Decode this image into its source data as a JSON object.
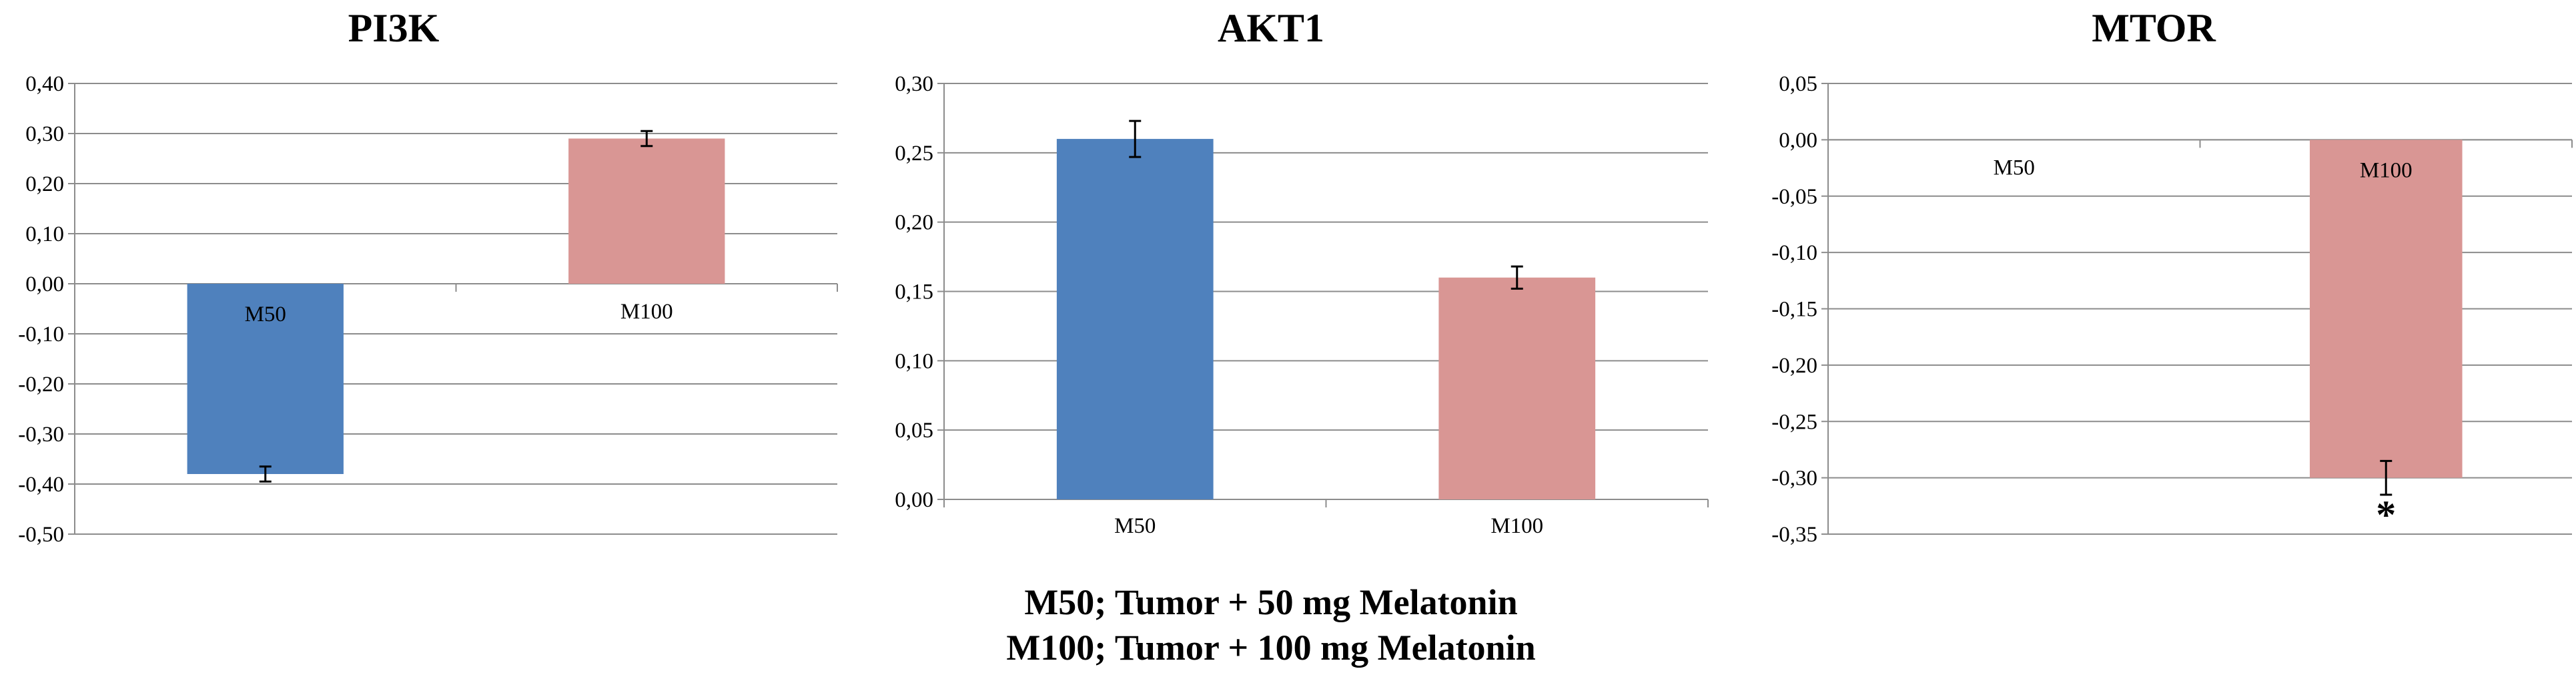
{
  "chart_data": [
    {
      "type": "bar",
      "title": "PI3K",
      "categories": [
        "M50",
        "M100"
      ],
      "values": [
        -0.38,
        0.29
      ],
      "errors": [
        0.015,
        0.015
      ],
      "colors": [
        "#4f81bd",
        "#d99694"
      ],
      "ylim": [
        -0.5,
        0.4
      ],
      "ystep": 0.1,
      "tick_labels": [
        "0,40",
        "0,30",
        "0,20",
        "0,10",
        "0,00",
        "-0,10",
        "-0,20",
        "-0,30",
        "-0,40",
        "-0,50"
      ],
      "grid": true,
      "significance": [
        "",
        ""
      ]
    },
    {
      "type": "bar",
      "title": "AKT1",
      "categories": [
        "M50",
        "M100"
      ],
      "values": [
        0.26,
        0.16
      ],
      "errors": [
        0.013,
        0.008
      ],
      "colors": [
        "#4f81bd",
        "#d99694"
      ],
      "ylim": [
        0.0,
        0.3
      ],
      "ystep": 0.05,
      "tick_labels": [
        "0,30",
        "0,25",
        "0,20",
        "0,15",
        "0,10",
        "0,05",
        "0,00"
      ],
      "grid": true,
      "significance": [
        "",
        ""
      ]
    },
    {
      "type": "bar",
      "title": "MTOR",
      "categories": [
        "M50",
        "M100"
      ],
      "values": [
        0.0,
        -0.3
      ],
      "errors": [
        0.0,
        0.015
      ],
      "colors": [
        "#4f81bd",
        "#d99694"
      ],
      "ylim": [
        -0.35,
        0.05
      ],
      "ystep": 0.05,
      "tick_labels": [
        "0,05",
        "0,00",
        "-0,05",
        "-0,10",
        "-0,15",
        "-0,20",
        "-0,25",
        "-0,30",
        "-0,35"
      ],
      "grid": true,
      "significance": [
        "",
        "*"
      ]
    }
  ],
  "legend_note": {
    "line1": "M50; Tumor + 50 mg Melatonin",
    "line2": "M100; Tumor + 100 mg Melatonin"
  }
}
